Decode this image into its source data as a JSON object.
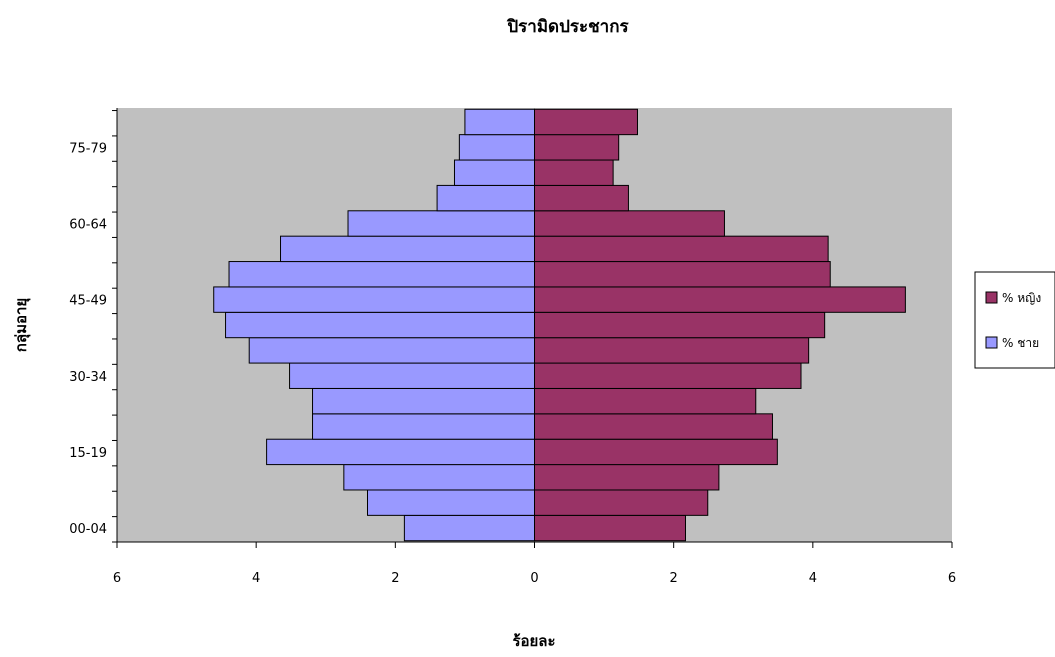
{
  "chart_data": {
    "type": "bar",
    "orientation": "horizontal-population-pyramid",
    "title": "ปิรามิดประชากร",
    "xlabel": "ร้อยละ",
    "ylabel": "กลุ่มอายุ",
    "xlim": [
      -6,
      6
    ],
    "x_ticks": [
      -6,
      -4,
      -2,
      0,
      2,
      4,
      6
    ],
    "x_tick_labels": [
      "6",
      "4",
      "2",
      "0",
      "2",
      "4",
      "6"
    ],
    "y_tick_labels": [
      "00-04",
      "15-19",
      "30-34",
      "45-49",
      "60-64",
      "75-79"
    ],
    "y_tick_positions": [
      0,
      3,
      6,
      9,
      12,
      15
    ],
    "categories_count": 17,
    "series": [
      {
        "name": "% หญิง",
        "side": "right",
        "color": "#993366",
        "values": [
          2.17,
          2.49,
          2.65,
          3.49,
          3.42,
          3.18,
          3.83,
          3.94,
          4.17,
          5.33,
          4.25,
          4.22,
          2.73,
          1.35,
          1.13,
          1.21,
          1.48
        ]
      },
      {
        "name": "% ชาย",
        "side": "left",
        "color": "#9999FF",
        "values": [
          1.87,
          2.4,
          2.74,
          3.85,
          3.19,
          3.19,
          3.52,
          4.1,
          4.44,
          4.61,
          4.39,
          3.65,
          2.68,
          1.4,
          1.15,
          1.08,
          1.0
        ]
      }
    ],
    "plot_background": "#C0C0C0",
    "grid": false,
    "legend_position": "right"
  }
}
